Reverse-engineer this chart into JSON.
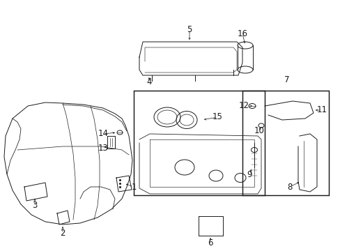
{
  "bg_color": "#ffffff",
  "line_color": "#1a1a1a",
  "fig_width": 4.89,
  "fig_height": 3.6,
  "dpi": 100,
  "label_fontsize": 8.5,
  "lw": 0.7
}
